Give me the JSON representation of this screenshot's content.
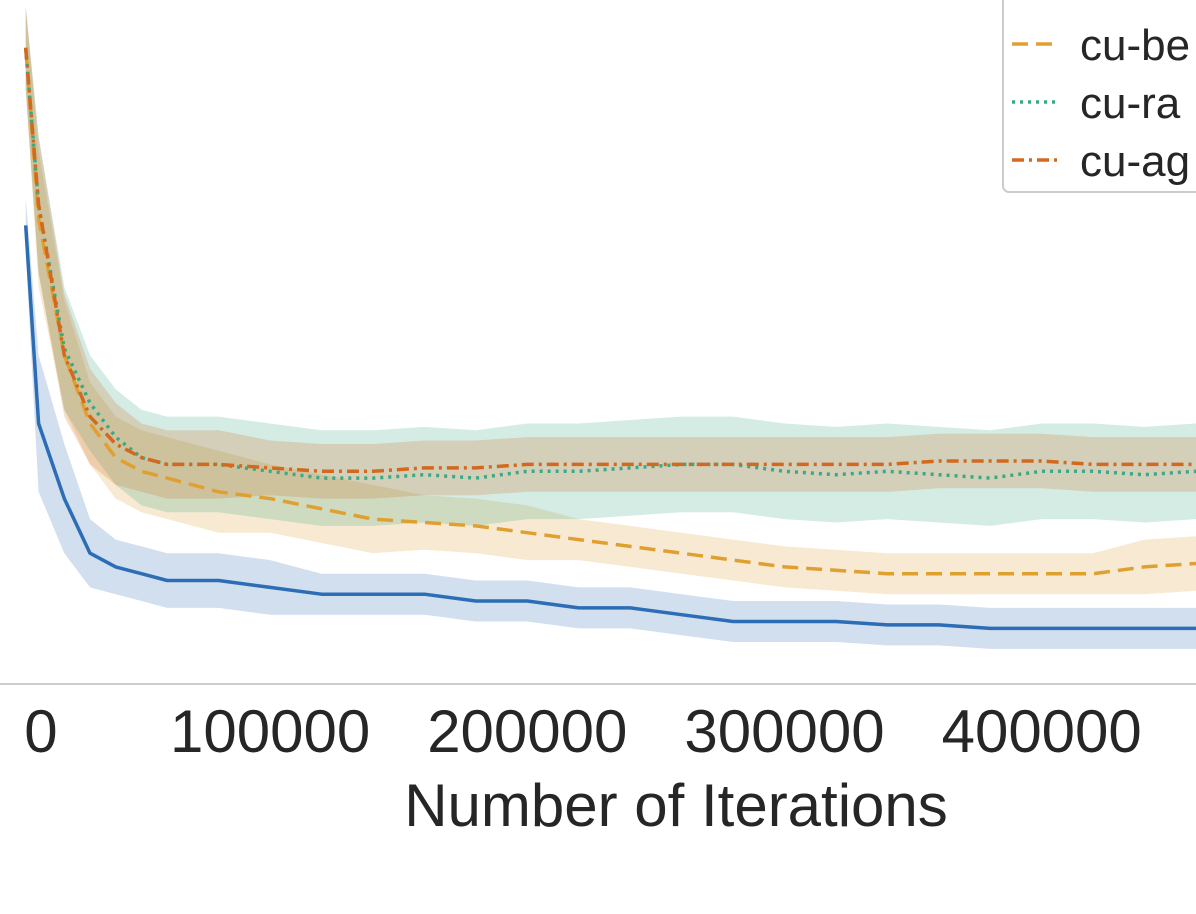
{
  "chart_data": {
    "type": "line",
    "title": "",
    "xlabel": "Number of Iterations",
    "ylabel": "",
    "x_ticks": [
      0,
      100000,
      200000,
      300000,
      400000
    ],
    "x_tick_labels": [
      "0",
      "100000",
      "200000",
      "300000",
      "400000"
    ],
    "xlim": [
      -5000,
      460000
    ],
    "ylim": [
      0,
      100
    ],
    "grid": false,
    "legend": {
      "placement": "top-right",
      "frame": true
    },
    "series": [
      {
        "name": "",
        "color": "#2c6db5",
        "style": "solid",
        "x": [
          5000,
          10000,
          20000,
          30000,
          40000,
          50000,
          60000,
          80000,
          100000,
          120000,
          140000,
          160000,
          180000,
          200000,
          220000,
          240000,
          260000,
          280000,
          300000,
          320000,
          340000,
          360000,
          380000,
          400000,
          420000,
          440000,
          460000
        ],
        "y": [
          67,
          38,
          27,
          19,
          17,
          16,
          15,
          15,
          14,
          13,
          13,
          13,
          12,
          12,
          11,
          11,
          10,
          9,
          9,
          9,
          8.5,
          8.5,
          8,
          8,
          8,
          8,
          8
        ],
        "band": [
          4,
          10,
          8,
          5,
          4,
          4,
          4,
          4,
          4,
          3,
          3,
          3,
          3,
          3,
          3,
          3,
          3,
          3,
          3,
          3,
          3,
          3,
          3,
          3,
          3,
          3,
          3
        ]
      },
      {
        "name": "cu-be",
        "color": "#e0a030",
        "style": "dashed",
        "x": [
          5000,
          10000,
          20000,
          30000,
          40000,
          50000,
          60000,
          80000,
          100000,
          120000,
          140000,
          160000,
          180000,
          200000,
          220000,
          240000,
          260000,
          280000,
          300000,
          320000,
          340000,
          360000,
          380000,
          400000,
          420000,
          440000,
          460000
        ],
        "y": [
          93,
          68,
          48,
          38,
          33,
          31,
          30,
          28,
          27,
          25.5,
          24,
          23.5,
          23,
          22,
          21,
          20,
          19,
          18,
          17,
          16.5,
          16,
          16,
          16,
          16,
          16,
          17,
          17.5
        ],
        "band": [
          6,
          10,
          8,
          6,
          6,
          6,
          6,
          6,
          5,
          5,
          5,
          4,
          4,
          4,
          3,
          3,
          3,
          3,
          3,
          3,
          3,
          3,
          3,
          3,
          3,
          4,
          4
        ]
      },
      {
        "name": "cu-ra",
        "color": "#3aa985",
        "style": "dotted",
        "x": [
          5000,
          10000,
          20000,
          30000,
          40000,
          50000,
          60000,
          80000,
          100000,
          120000,
          140000,
          160000,
          180000,
          200000,
          220000,
          240000,
          260000,
          280000,
          300000,
          320000,
          340000,
          360000,
          380000,
          400000,
          420000,
          440000,
          460000
        ],
        "y": [
          93,
          70,
          49,
          41,
          36,
          33,
          32,
          32,
          31,
          30,
          30,
          30.5,
          30,
          31,
          31,
          31.5,
          32,
          32,
          31,
          30.5,
          31,
          30.5,
          30,
          31,
          31,
          30.5,
          31
        ],
        "band": [
          6,
          10,
          9,
          7,
          7,
          7,
          7,
          7,
          7,
          7,
          7,
          7,
          7,
          7,
          7,
          7,
          7,
          7,
          7,
          7,
          7,
          7,
          7,
          7,
          7,
          7,
          7
        ]
      },
      {
        "name": "cu-ag",
        "color": "#d2691e",
        "style": "dashdot",
        "x": [
          5000,
          10000,
          20000,
          30000,
          40000,
          50000,
          60000,
          80000,
          100000,
          120000,
          140000,
          160000,
          180000,
          200000,
          220000,
          240000,
          260000,
          280000,
          300000,
          320000,
          340000,
          360000,
          380000,
          400000,
          420000,
          440000,
          460000
        ],
        "y": [
          93,
          70,
          48,
          39,
          35,
          33,
          32,
          32,
          31.5,
          31,
          31,
          31.5,
          31.5,
          32,
          32,
          32,
          32,
          32,
          32,
          32,
          32,
          32.5,
          32.5,
          32.5,
          32,
          32,
          32
        ],
        "band": [
          6,
          10,
          9,
          7,
          6,
          5,
          5,
          5,
          4,
          4,
          4,
          4,
          4,
          4,
          4,
          4,
          4,
          4,
          4,
          4,
          4,
          4,
          4,
          4,
          4,
          4,
          4
        ]
      }
    ]
  }
}
